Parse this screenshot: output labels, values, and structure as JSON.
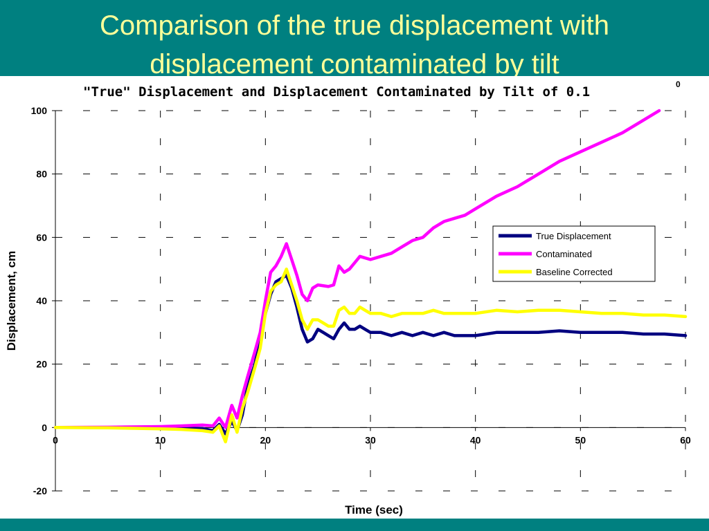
{
  "slide": {
    "title_line1": "Comparison of the true displacement with",
    "title_line2": "displacement contaminated by tilt",
    "header_color": "#008080",
    "title_color": "#ffff99"
  },
  "chart_data": {
    "type": "line",
    "title": "\"True\" Displacement and Displacement Contaminated by Tilt of 0.1",
    "title_superscript": "0",
    "xlabel": "Time (sec)",
    "ylabel": "Displacement, cm",
    "xlim": [
      0,
      60
    ],
    "ylim": [
      -20,
      100
    ],
    "xticks": [
      0,
      10,
      20,
      30,
      40,
      50,
      60
    ],
    "yticks": [
      -20,
      0,
      20,
      40,
      60,
      80,
      100
    ],
    "grid": true,
    "legend_position": "right",
    "series": [
      {
        "name": "True Displacement",
        "color": "#000080",
        "points": [
          [
            0,
            0
          ],
          [
            5,
            0
          ],
          [
            10,
            0
          ],
          [
            12,
            -0.2
          ],
          [
            14,
            -0.3
          ],
          [
            15,
            -1
          ],
          [
            15.6,
            1
          ],
          [
            16.2,
            -2
          ],
          [
            16.8,
            2
          ],
          [
            17.3,
            -1
          ],
          [
            17.8,
            4
          ],
          [
            18.3,
            13
          ],
          [
            19,
            20
          ],
          [
            19.5,
            28
          ],
          [
            20,
            36
          ],
          [
            20.5,
            42
          ],
          [
            21,
            46
          ],
          [
            21.5,
            47
          ],
          [
            22,
            48
          ],
          [
            22.5,
            44
          ],
          [
            23,
            38
          ],
          [
            23.5,
            31
          ],
          [
            24,
            27
          ],
          [
            24.5,
            28
          ],
          [
            25,
            31
          ],
          [
            25.5,
            30
          ],
          [
            26,
            29
          ],
          [
            26.5,
            28
          ],
          [
            27,
            31
          ],
          [
            27.5,
            33
          ],
          [
            28,
            31
          ],
          [
            28.5,
            31
          ],
          [
            29,
            32
          ],
          [
            29.5,
            31
          ],
          [
            30,
            30
          ],
          [
            31,
            30
          ],
          [
            32,
            29
          ],
          [
            33,
            30
          ],
          [
            34,
            29
          ],
          [
            35,
            30
          ],
          [
            36,
            29
          ],
          [
            37,
            30
          ],
          [
            38,
            29
          ],
          [
            39,
            29
          ],
          [
            40,
            29
          ],
          [
            42,
            30
          ],
          [
            44,
            30
          ],
          [
            46,
            30
          ],
          [
            48,
            30.5
          ],
          [
            50,
            30
          ],
          [
            52,
            30
          ],
          [
            54,
            30
          ],
          [
            56,
            29.5
          ],
          [
            58,
            29.5
          ],
          [
            60,
            29
          ]
        ]
      },
      {
        "name": "Contaminated",
        "color": "#ff00ff",
        "points": [
          [
            0,
            0
          ],
          [
            5,
            0.1
          ],
          [
            10,
            0.3
          ],
          [
            12,
            0.5
          ],
          [
            14,
            0.8
          ],
          [
            15,
            0.5
          ],
          [
            15.6,
            3
          ],
          [
            16.2,
            0
          ],
          [
            16.8,
            7
          ],
          [
            17.3,
            3
          ],
          [
            17.8,
            10
          ],
          [
            18.3,
            16
          ],
          [
            19,
            24
          ],
          [
            19.5,
            30
          ],
          [
            20,
            40
          ],
          [
            20.5,
            49
          ],
          [
            21,
            51
          ],
          [
            21.5,
            54
          ],
          [
            22,
            58
          ],
          [
            22.5,
            53
          ],
          [
            23,
            48
          ],
          [
            23.5,
            42
          ],
          [
            24,
            40
          ],
          [
            24.5,
            44
          ],
          [
            25,
            45
          ],
          [
            26,
            44.5
          ],
          [
            26.5,
            45
          ],
          [
            27,
            51
          ],
          [
            27.5,
            49
          ],
          [
            28,
            50
          ],
          [
            28.5,
            52
          ],
          [
            29,
            54
          ],
          [
            30,
            53
          ],
          [
            31,
            54
          ],
          [
            32,
            55
          ],
          [
            33,
            57
          ],
          [
            34,
            59
          ],
          [
            35,
            60
          ],
          [
            36,
            63
          ],
          [
            37,
            65
          ],
          [
            38,
            66
          ],
          [
            39,
            67
          ],
          [
            40,
            69
          ],
          [
            42,
            73
          ],
          [
            44,
            76
          ],
          [
            46,
            80
          ],
          [
            48,
            84
          ],
          [
            50,
            87
          ],
          [
            52,
            90
          ],
          [
            54,
            93
          ],
          [
            56,
            97
          ],
          [
            57.5,
            100
          ]
        ]
      },
      {
        "name": "Baseline Corrected",
        "color": "#ffff00",
        "points": [
          [
            0,
            0
          ],
          [
            5,
            -0.1
          ],
          [
            10,
            -0.4
          ],
          [
            12,
            -0.6
          ],
          [
            14,
            -1
          ],
          [
            15,
            -1.5
          ],
          [
            15.6,
            0.5
          ],
          [
            16.2,
            -4.5
          ],
          [
            16.8,
            4
          ],
          [
            17.3,
            -1.5
          ],
          [
            17.8,
            6
          ],
          [
            18.3,
            11
          ],
          [
            19,
            19
          ],
          [
            19.5,
            25
          ],
          [
            20,
            36
          ],
          [
            20.5,
            43
          ],
          [
            21,
            45
          ],
          [
            21.5,
            46
          ],
          [
            22,
            50
          ],
          [
            22.5,
            45
          ],
          [
            23,
            40
          ],
          [
            23.5,
            34
          ],
          [
            24,
            31
          ],
          [
            24.5,
            34
          ],
          [
            25,
            34
          ],
          [
            25.5,
            33
          ],
          [
            26,
            32
          ],
          [
            26.5,
            32
          ],
          [
            27,
            37
          ],
          [
            27.5,
            38
          ],
          [
            28,
            36
          ],
          [
            28.5,
            36
          ],
          [
            29,
            38
          ],
          [
            29.5,
            37
          ],
          [
            30,
            36
          ],
          [
            31,
            36
          ],
          [
            32,
            35
          ],
          [
            33,
            36
          ],
          [
            34,
            36
          ],
          [
            35,
            36
          ],
          [
            36,
            37
          ],
          [
            37,
            36
          ],
          [
            38,
            36
          ],
          [
            39,
            36
          ],
          [
            40,
            36
          ],
          [
            42,
            37
          ],
          [
            44,
            36.5
          ],
          [
            46,
            37
          ],
          [
            48,
            37
          ],
          [
            50,
            36.5
          ],
          [
            52,
            36
          ],
          [
            54,
            36
          ],
          [
            56,
            35.5
          ],
          [
            58,
            35.5
          ],
          [
            60,
            35
          ]
        ]
      }
    ]
  }
}
